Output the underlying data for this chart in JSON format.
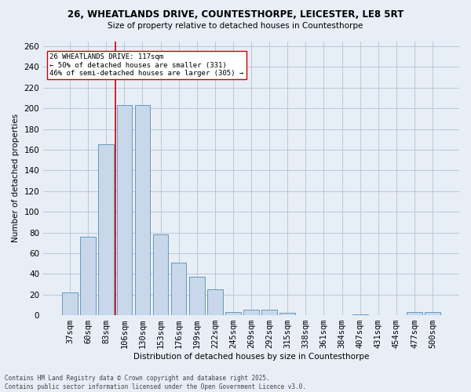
{
  "title_line1": "26, WHEATLANDS DRIVE, COUNTESTHORPE, LEICESTER, LE8 5RT",
  "title_line2": "Size of property relative to detached houses in Countesthorpe",
  "xlabel": "Distribution of detached houses by size in Countesthorpe",
  "ylabel": "Number of detached properties",
  "categories": [
    "37sqm",
    "60sqm",
    "83sqm",
    "106sqm",
    "130sqm",
    "153sqm",
    "176sqm",
    "199sqm",
    "222sqm",
    "245sqm",
    "269sqm",
    "292sqm",
    "315sqm",
    "338sqm",
    "361sqm",
    "384sqm",
    "407sqm",
    "431sqm",
    "454sqm",
    "477sqm",
    "500sqm"
  ],
  "values": [
    22,
    76,
    165,
    203,
    203,
    78,
    51,
    37,
    25,
    3,
    5,
    5,
    2,
    0,
    0,
    0,
    1,
    0,
    0,
    3,
    3
  ],
  "bar_color": "#c8d8ea",
  "bar_edge_color": "#6699bb",
  "grid_color": "#b8c8d8",
  "bg_color": "#e8eef6",
  "vline_color": "#cc0000",
  "vline_x_index": 3,
  "annotation_text_line1": "26 WHEATLANDS DRIVE: 117sqm",
  "annotation_text_line2": "← 50% of detached houses are smaller (331)",
  "annotation_text_line3": "46% of semi-detached houses are larger (305) →",
  "annotation_box_color": "#ffffff",
  "annotation_box_edge": "#cc0000",
  "footer_line1": "Contains HM Land Registry data © Crown copyright and database right 2025.",
  "footer_line2": "Contains public sector information licensed under the Open Government Licence v3.0.",
  "ylim": [
    0,
    265
  ],
  "yticks": [
    0,
    20,
    40,
    60,
    80,
    100,
    120,
    140,
    160,
    180,
    200,
    220,
    240,
    260
  ]
}
